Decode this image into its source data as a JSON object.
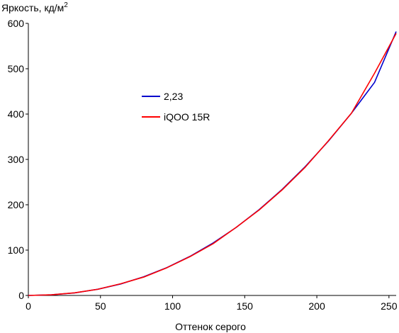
{
  "chart_data": {
    "type": "line",
    "ylabel": "Яркость, кд/м",
    "ylabel_superscript": "2",
    "xlabel": "Оттенок серого",
    "xlim": [
      0,
      255
    ],
    "ylim": [
      0,
      600
    ],
    "x_ticks": [
      0,
      50,
      100,
      150,
      200,
      250
    ],
    "y_ticks": [
      0,
      100,
      200,
      300,
      400,
      500,
      600
    ],
    "grid": false,
    "legend_position": "upper-left-center",
    "series": [
      {
        "name": "2,23",
        "color": "#0000cc",
        "x": [
          0,
          16,
          32,
          48,
          64,
          80,
          96,
          112,
          128,
          144,
          160,
          176,
          192,
          208,
          224,
          240,
          255
        ],
        "y": [
          0,
          1.4,
          5.6,
          13.6,
          25.3,
          41.2,
          61.4,
          86.1,
          115.5,
          149.8,
          189.2,
          234.0,
          284.3,
          340.2,
          401.9,
          469.8,
          582.0
        ]
      },
      {
        "name": "iQOO 15R",
        "color": "#ff0000",
        "x": [
          0,
          16,
          32,
          48,
          64,
          80,
          96,
          112,
          128,
          144,
          160,
          176,
          192,
          208,
          224,
          240,
          255
        ],
        "y": [
          0,
          1.5,
          5.8,
          13.5,
          25.8,
          40.5,
          61.0,
          85.5,
          114.0,
          150.0,
          188.5,
          233.0,
          283.0,
          341.0,
          402.0,
          490.0,
          578.0
        ]
      }
    ]
  }
}
